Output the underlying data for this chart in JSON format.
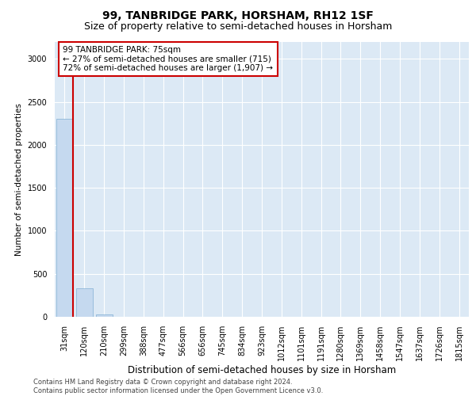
{
  "title": "99, TANBRIDGE PARK, HORSHAM, RH12 1SF",
  "subtitle": "Size of property relative to semi-detached houses in Horsham",
  "xlabel": "Distribution of semi-detached houses by size in Horsham",
  "ylabel": "Number of semi-detached properties",
  "footer_line1": "Contains HM Land Registry data © Crown copyright and database right 2024.",
  "footer_line2": "Contains public sector information licensed under the Open Government Licence v3.0.",
  "categories": [
    "31sqm",
    "120sqm",
    "210sqm",
    "299sqm",
    "388sqm",
    "477sqm",
    "566sqm",
    "656sqm",
    "745sqm",
    "834sqm",
    "923sqm",
    "1012sqm",
    "1101sqm",
    "1191sqm",
    "1280sqm",
    "1369sqm",
    "1458sqm",
    "1547sqm",
    "1637sqm",
    "1726sqm",
    "1815sqm"
  ],
  "values": [
    2300,
    330,
    30,
    0,
    0,
    0,
    0,
    0,
    0,
    0,
    0,
    0,
    0,
    0,
    0,
    0,
    0,
    0,
    0,
    0,
    0
  ],
  "bar_color": "#c5d9ef",
  "bar_edge_color": "#8fb8d8",
  "property_line_color": "#cc0000",
  "property_line_x": 0.42,
  "annotation_text_line1": "99 TANBRIDGE PARK: 75sqm",
  "annotation_text_line2": "← 27% of semi-detached houses are smaller (715)",
  "annotation_text_line3": "72% of semi-detached houses are larger (1,907) →",
  "annotation_box_color": "#cc0000",
  "ylim": [
    0,
    3200
  ],
  "yticks": [
    0,
    500,
    1000,
    1500,
    2000,
    2500,
    3000
  ],
  "background_color": "#dce9f5",
  "title_fontsize": 10,
  "subtitle_fontsize": 9,
  "ylabel_fontsize": 7.5,
  "xlabel_fontsize": 8.5,
  "tick_fontsize": 7,
  "annotation_fontsize": 7.5
}
